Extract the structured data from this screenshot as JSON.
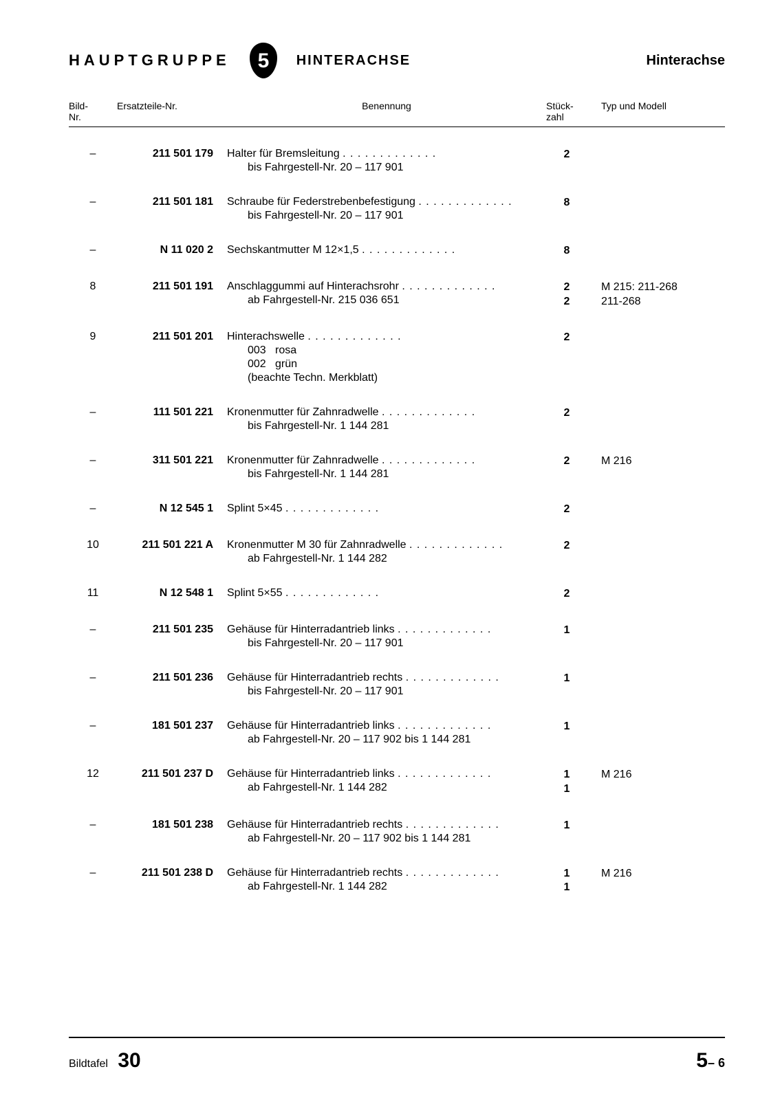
{
  "header": {
    "hauptgruppe": "HAUPTGRUPPE",
    "group_number": "5",
    "title_center": "HINTERACHSE",
    "title_right": "Hinterachse"
  },
  "columns": {
    "bild": "Bild-\nNr.",
    "ersatz": "Ersatzteile-Nr.",
    "benennung": "Benennung",
    "stk": "Stück-\nzahl",
    "typ": "Typ und Modell"
  },
  "rows": [
    {
      "bild": "–",
      "ersatz": "211 501 179",
      "ben": "Halter für Bremsleitung",
      "subs": [
        "bis Fahrgestell-Nr. 20 – 117 901"
      ],
      "stk": [
        "2"
      ],
      "typ": [
        ""
      ]
    },
    {
      "bild": "–",
      "ersatz": "211 501 181",
      "ben": "Schraube für Federstrebenbefestigung",
      "subs": [
        "bis Fahrgestell-Nr. 20 – 117 901"
      ],
      "stk": [
        "8"
      ],
      "typ": [
        ""
      ]
    },
    {
      "bild": "–",
      "ersatz": "N 11 020 2",
      "ben": "Sechskantmutter M 12×1,5",
      "subs": [],
      "stk": [
        "8"
      ],
      "typ": [
        ""
      ]
    },
    {
      "bild": "8",
      "ersatz": "211 501 191",
      "ben": "Anschlaggummi auf Hinterachsrohr",
      "subs": [
        "ab Fahrgestell-Nr. 215 036 651"
      ],
      "stk": [
        "2",
        "2"
      ],
      "typ": [
        "M 215: 211-268",
        "211-268"
      ]
    },
    {
      "bild": "9",
      "ersatz": "211 501 201",
      "ben": "Hinterachswelle",
      "subs": [
        "003   rosa",
        "002   grün",
        "(beachte Techn. Merkblatt)"
      ],
      "stk": [
        "2"
      ],
      "typ": [
        ""
      ]
    },
    {
      "bild": "–",
      "ersatz": "111 501 221",
      "ben": "Kronenmutter für Zahnradwelle",
      "subs": [
        "bis Fahrgestell-Nr. 1 144 281"
      ],
      "stk": [
        "2"
      ],
      "typ": [
        ""
      ]
    },
    {
      "bild": "–",
      "ersatz": "311 501 221",
      "ben": "Kronenmutter für Zahnradwelle",
      "subs": [
        "bis Fahrgestell-Nr. 1 144 281"
      ],
      "stk": [
        "2"
      ],
      "typ": [
        "M 216"
      ]
    },
    {
      "bild": "–",
      "ersatz": "N 12 545 1",
      "ben": "Splint 5×45",
      "subs": [],
      "stk": [
        "2"
      ],
      "typ": [
        ""
      ]
    },
    {
      "bild": "10",
      "ersatz": "211 501 221 A",
      "ben": "Kronenmutter M 30 für Zahnradwelle",
      "subs": [
        "ab Fahrgestell-Nr. 1 144 282"
      ],
      "stk": [
        "2"
      ],
      "typ": [
        ""
      ]
    },
    {
      "bild": "11",
      "ersatz": "N 12 548 1",
      "ben": "Splint 5×55",
      "subs": [],
      "stk": [
        "2"
      ],
      "typ": [
        ""
      ]
    },
    {
      "bild": "–",
      "ersatz": "211 501 235",
      "ben": "Gehäuse für Hinterradantrieb links",
      "subs": [
        "bis Fahrgestell-Nr. 20 – 117 901"
      ],
      "stk": [
        "1"
      ],
      "typ": [
        ""
      ]
    },
    {
      "bild": "–",
      "ersatz": "211 501 236",
      "ben": "Gehäuse für Hinterradantrieb rechts",
      "subs": [
        "bis Fahrgestell-Nr. 20 – 117 901"
      ],
      "stk": [
        "1"
      ],
      "typ": [
        ""
      ]
    },
    {
      "bild": "–",
      "ersatz": "181 501 237",
      "ben": "Gehäuse für Hinterradantrieb links",
      "subs": [
        "ab Fahrgestell-Nr. 20 – 117 902 bis 1 144 281"
      ],
      "stk": [
        "1"
      ],
      "typ": [
        ""
      ]
    },
    {
      "bild": "12",
      "ersatz": "211 501 237 D",
      "ben": "Gehäuse für Hinterradantrieb links",
      "subs": [
        "ab Fahrgestell-Nr. 1 144 282"
      ],
      "stk": [
        "1",
        "1"
      ],
      "typ": [
        "M 216",
        ""
      ]
    },
    {
      "bild": "–",
      "ersatz": "181 501 238",
      "ben": "Gehäuse für Hinterradantrieb rechts",
      "subs": [
        "ab Fahrgestell-Nr. 20 – 117 902 bis 1 144 281"
      ],
      "stk": [
        "1"
      ],
      "typ": [
        ""
      ]
    },
    {
      "bild": "–",
      "ersatz": "211 501 238 D",
      "ben": "Gehäuse für Hinterradantrieb rechts",
      "subs": [
        "ab Fahrgestell-Nr. 1 144 282"
      ],
      "stk": [
        "1",
        "1"
      ],
      "typ": [
        "M 216",
        ""
      ]
    }
  ],
  "footer": {
    "bildtafel_label": "Bildtafel",
    "bildtafel_num": "30",
    "page_main": "5",
    "page_sub": "– 6"
  },
  "colors": {
    "text": "#000000",
    "bg": "#ffffff"
  }
}
